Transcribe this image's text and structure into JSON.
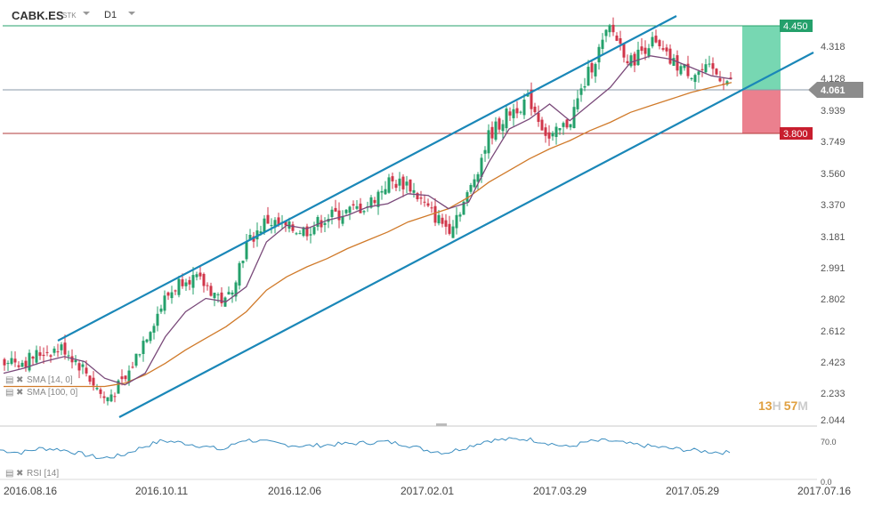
{
  "header": {
    "symbol": "CABK.ES",
    "instrument_type": "STK",
    "timeframe": "D1"
  },
  "countdown": {
    "hours": "13",
    "h_unit": "H",
    "minutes": "57",
    "m_unit": "M"
  },
  "indicators": {
    "sma14_label": "SMA [14, 0]",
    "sma100_label": "SMA [100, 0]",
    "rsi_label": "RSI [14]"
  },
  "levels": {
    "take_profit": "4.450",
    "current": "4.061",
    "stop_loss": "3.800"
  },
  "colors": {
    "up": "#24a06b",
    "down": "#d0364a",
    "channel": "#1a87b8",
    "sma14": "#7a4a7a",
    "sma100": "#d07a2a",
    "tp_zone": "#5fd0a4",
    "sl_zone": "#e86a7a",
    "rsi": "#3c8ec0"
  },
  "chart_data": [
    {
      "type": "candlestick",
      "title": "",
      "y_ticks": [
        "4.318",
        "4.128",
        "3.939",
        "3.749",
        "3.560",
        "3.370",
        "3.181",
        "2.991",
        "2.802",
        "2.612",
        "2.423",
        "2.233",
        "2.044"
      ],
      "x_ticks": [
        "2016.08.16",
        "2016.10.11",
        "2016.12.06",
        "2017.02.01",
        "2017.03.29",
        "2017.05.29",
        "2017.07.16"
      ],
      "ylim": [
        2.044,
        4.46
      ],
      "horizontal_levels": [
        4.45,
        4.061,
        3.8
      ],
      "series": [
        {
          "name": "SMA [14, 0]",
          "values": [
            2.33,
            2.36,
            2.4,
            2.43,
            2.4,
            2.3,
            2.26,
            2.33,
            2.55,
            2.7,
            2.78,
            2.76,
            2.85,
            3.12,
            3.22,
            3.2,
            3.25,
            3.28,
            3.33,
            3.35,
            3.41,
            3.4,
            3.32,
            3.36,
            3.6,
            3.8,
            3.86,
            3.95,
            3.85,
            3.95,
            4.05,
            4.2,
            4.24,
            4.22,
            4.17,
            4.12,
            4.1
          ]
        },
        {
          "name": "SMA [100, 0]",
          "values": [
            2.25,
            2.25,
            2.25,
            2.25,
            2.25,
            2.25,
            2.27,
            2.32,
            2.39,
            2.47,
            2.54,
            2.61,
            2.7,
            2.83,
            2.91,
            2.97,
            3.02,
            3.08,
            3.13,
            3.18,
            3.24,
            3.28,
            3.32,
            3.39,
            3.48,
            3.55,
            3.62,
            3.68,
            3.73,
            3.79,
            3.84,
            3.9,
            3.94,
            3.98,
            4.02,
            4.05,
            4.08
          ]
        },
        {
          "name": "close",
          "values": [
            2.42,
            2.4,
            2.46,
            2.48,
            2.35,
            2.17,
            2.28,
            2.55,
            2.78,
            2.92,
            2.86,
            2.75,
            3.1,
            3.25,
            3.2,
            3.19,
            3.27,
            3.3,
            3.34,
            3.48,
            3.47,
            3.31,
            3.2,
            3.41,
            3.76,
            3.9,
            3.98,
            3.73,
            3.85,
            4.16,
            4.41,
            4.2,
            4.33,
            4.2,
            4.14,
            4.15,
            4.07
          ]
        }
      ],
      "channel": {
        "upper": {
          "from": [
            "2016.08.26",
            2.51
          ],
          "to": [
            "2017.05.18",
            4.45
          ]
        },
        "lower": {
          "from": [
            "2016.09.26",
            2.06
          ],
          "to": [
            "2017.06.28",
            4.28
          ]
        }
      }
    },
    {
      "type": "line",
      "title": "",
      "y_ticks": [
        "70.0",
        "0.0"
      ],
      "ylim": [
        0,
        100
      ],
      "series": [
        {
          "name": "RSI [14]",
          "values": [
            55,
            50,
            58,
            56,
            48,
            40,
            45,
            60,
            72,
            68,
            62,
            55,
            74,
            70,
            65,
            62,
            64,
            66,
            68,
            70,
            65,
            55,
            50,
            60,
            72,
            74,
            75,
            68,
            60,
            70,
            72,
            66,
            62,
            58,
            55,
            52,
            50
          ]
        }
      ]
    }
  ]
}
